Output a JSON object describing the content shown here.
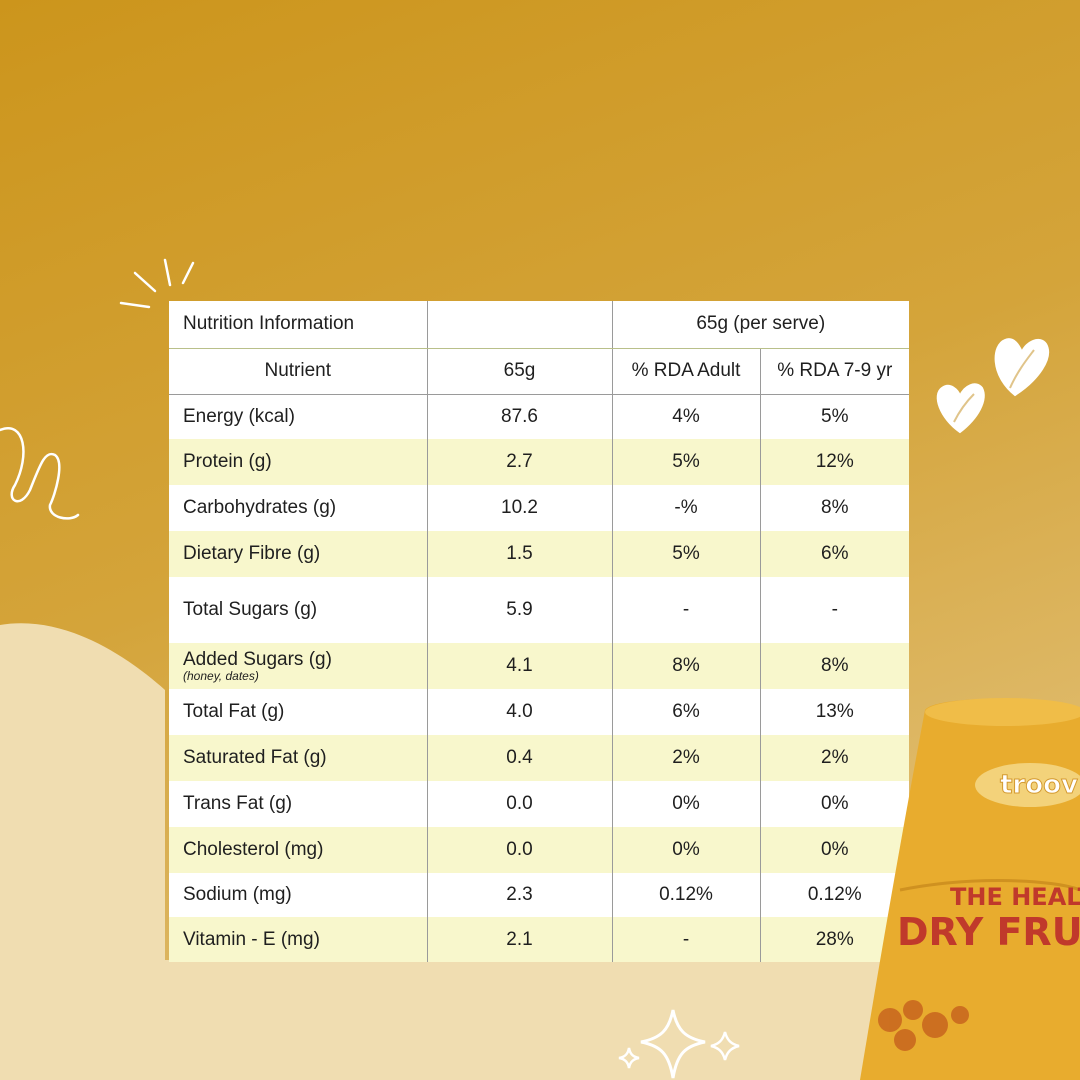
{
  "table": {
    "title": "Nutrition Information",
    "serve_label": "65g (per serve)",
    "headers": [
      "Nutrient",
      "65g",
      "% RDA Adult",
      "% RDA 7-9 yr"
    ],
    "rows": [
      {
        "nutrient": "Energy (kcal)",
        "value": "87.6",
        "rda_adult": "4%",
        "rda_child": "5%"
      },
      {
        "nutrient": "Protein (g)",
        "value": "2.7",
        "rda_adult": "5%",
        "rda_child": "12%"
      },
      {
        "nutrient": "Carbohydrates (g)",
        "value": "10.2",
        "rda_adult": "-%",
        "rda_child": "8%"
      },
      {
        "nutrient": "Dietary Fibre (g)",
        "value": "1.5",
        "rda_adult": "5%",
        "rda_child": "6%"
      },
      {
        "nutrient": "Total Sugars (g)",
        "value": "5.9",
        "rda_adult": "-",
        "rda_child": "-"
      },
      {
        "nutrient": "Added Sugars (g)",
        "note": "(honey, dates)",
        "value": "4.1",
        "rda_adult": "8%",
        "rda_child": "8%"
      },
      {
        "nutrient": "Total Fat (g)",
        "value": "4.0",
        "rda_adult": "6%",
        "rda_child": "13%"
      },
      {
        "nutrient": "Saturated Fat (g)",
        "value": "0.4",
        "rda_adult": "2%",
        "rda_child": "2%"
      },
      {
        "nutrient": "Trans Fat (g)",
        "value": "0.0",
        "rda_adult": "0%",
        "rda_child": "0%"
      },
      {
        "nutrient": "Cholesterol (mg)",
        "value": "0.0",
        "rda_adult": "0%",
        "rda_child": "0%"
      },
      {
        "nutrient": "Sodium (mg)",
        "value": "2.3",
        "rda_adult": "0.12%",
        "rda_child": "0.12%"
      },
      {
        "nutrient": "Vitamin - E (mg)",
        "value": "2.1",
        "rda_adult": "-",
        "rda_child": "28%"
      }
    ]
  },
  "product": {
    "brand": "troov",
    "line1": "THE HEALTH",
    "line2": "DRY FRUIT B"
  },
  "colors": {
    "background": "#cc951c",
    "cream": "#f0ddb1",
    "highlight_row": "#f8f7cc",
    "product_text": "#c0392b",
    "pack": "#e8ac2e"
  },
  "icons": [
    "sparkle-lines-icon",
    "heart-icon",
    "swirl-doodle-icon",
    "star-sparkle-icon"
  ]
}
